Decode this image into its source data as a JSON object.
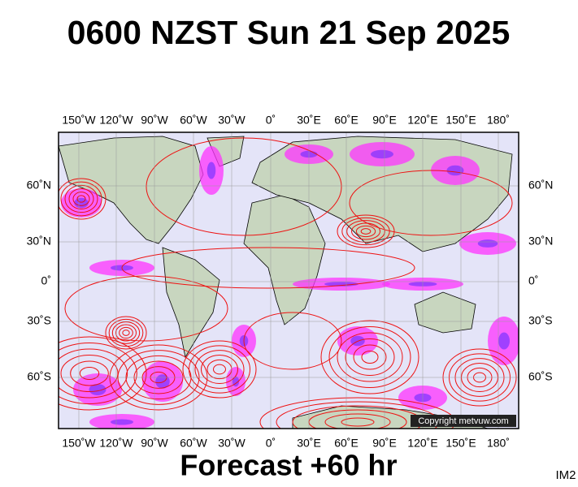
{
  "title": "0600 NZST Sun 21 Sep 2025",
  "map": {
    "lon_labels": [
      "150˚W",
      "120˚W",
      "90˚W",
      "60˚W",
      "30˚W",
      "0˚",
      "30˚E",
      "60˚E",
      "90˚E",
      "120˚E",
      "150˚E",
      "180˚"
    ],
    "lat_labels": [
      "60˚N",
      "30˚N",
      "0˚",
      "30˚S",
      "60˚S"
    ],
    "copyright": "Copyright metvuw.com"
  },
  "footer": {
    "forecast": "Forecast +60 hr",
    "code": "IM2"
  }
}
